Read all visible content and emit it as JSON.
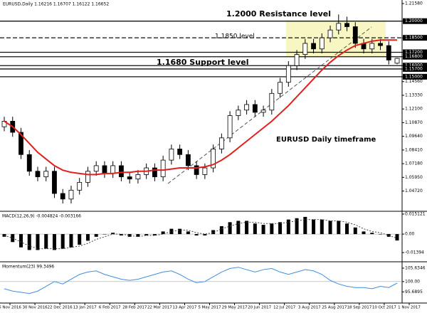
{
  "chart_data": {
    "type": "candlestick",
    "title": "EURUSD,Daily 1.16216 1.16707 1.16122 1.16652",
    "annotations": [
      "1.2000 Resistance level",
      "1.1850 level",
      "1.1680 Support level",
      "EURUSD Daily timeframe"
    ],
    "x_labels": [
      "6 Nov 2016",
      "30 Nov 2016",
      "22 Dec 2016",
      "13 Jan 2017",
      "6 Feb 2017",
      "28 Feb 2017",
      "22 Mar 2017",
      "13 Apr 2017",
      "5 May 2017",
      "29 May 2017",
      "20 Jun 2017",
      "12 Jul 2017",
      "3 Aug 2017",
      "25 Aug 2017",
      "18 Sep 2017",
      "10 Oct 2017",
      "1 Nov 2017"
    ],
    "open": [
      1.105,
      1.11,
      1.1,
      1.08,
      1.065,
      1.06,
      1.065,
      1.045,
      1.04,
      1.048,
      1.055,
      1.065,
      1.07,
      1.063,
      1.07,
      1.06,
      1.058,
      1.062,
      1.068,
      1.06,
      1.075,
      1.085,
      1.08,
      1.07,
      1.062,
      1.068,
      1.085,
      1.095,
      1.115,
      1.12,
      1.125,
      1.118,
      1.12,
      1.135,
      1.145,
      1.16,
      1.17,
      1.18,
      1.175,
      1.185,
      1.192,
      1.198,
      1.195,
      1.18,
      1.175,
      1.18,
      1.178,
      1.16216
    ],
    "high": [
      1.114,
      1.114,
      1.104,
      1.084,
      1.069,
      1.069,
      1.069,
      1.049,
      1.052,
      1.059,
      1.069,
      1.074,
      1.074,
      1.074,
      1.074,
      1.064,
      1.066,
      1.072,
      1.072,
      1.079,
      1.089,
      1.089,
      1.084,
      1.074,
      1.072,
      1.089,
      1.099,
      1.119,
      1.124,
      1.129,
      1.129,
      1.124,
      1.139,
      1.149,
      1.164,
      1.174,
      1.184,
      1.184,
      1.189,
      1.196,
      1.206,
      1.204,
      1.199,
      1.184,
      1.184,
      1.184,
      1.182,
      1.16707
    ],
    "low": [
      1.101,
      1.096,
      1.076,
      1.061,
      1.056,
      1.056,
      1.041,
      1.036,
      1.036,
      1.044,
      1.051,
      1.061,
      1.059,
      1.059,
      1.056,
      1.054,
      1.054,
      1.058,
      1.056,
      1.056,
      1.071,
      1.076,
      1.066,
      1.058,
      1.058,
      1.064,
      1.081,
      1.091,
      1.111,
      1.116,
      1.114,
      1.114,
      1.116,
      1.131,
      1.141,
      1.156,
      1.166,
      1.171,
      1.171,
      1.181,
      1.188,
      1.191,
      1.176,
      1.171,
      1.171,
      1.174,
      1.161,
      1.16122
    ],
    "close": [
      1.11,
      1.1,
      1.08,
      1.065,
      1.06,
      1.065,
      1.045,
      1.04,
      1.048,
      1.055,
      1.065,
      1.07,
      1.063,
      1.07,
      1.06,
      1.058,
      1.062,
      1.068,
      1.06,
      1.075,
      1.085,
      1.08,
      1.07,
      1.062,
      1.068,
      1.085,
      1.095,
      1.115,
      1.12,
      1.125,
      1.118,
      1.12,
      1.135,
      1.145,
      1.16,
      1.17,
      1.18,
      1.175,
      1.185,
      1.192,
      1.198,
      1.195,
      1.18,
      1.175,
      1.18,
      1.178,
      1.165,
      1.16652
    ],
    "moving_average": {
      "color": "#e0201c",
      "values": [
        1.11,
        1.105,
        1.098,
        1.09,
        1.082,
        1.076,
        1.07,
        1.066,
        1.064,
        1.063,
        1.062,
        1.062,
        1.063,
        1.063,
        1.064,
        1.064,
        1.065,
        1.065,
        1.066,
        1.066,
        1.067,
        1.068,
        1.068,
        1.068,
        1.069,
        1.071,
        1.075,
        1.08,
        1.086,
        1.092,
        1.098,
        1.104,
        1.11,
        1.117,
        1.124,
        1.132,
        1.14,
        1.148,
        1.156,
        1.163,
        1.169,
        1.174,
        1.178,
        1.18,
        1.182,
        1.183,
        1.183,
        1.183
      ]
    },
    "ylim": [
      1.029,
      1.219
    ],
    "yticks": [
      {
        "value": 1.2158,
        "label": "1.21580"
      },
      {
        "value": 1.1456,
        "label": "1.14560"
      },
      {
        "value": 1.1333,
        "label": "1.13330"
      },
      {
        "value": 1.121,
        "label": "1.12100"
      },
      {
        "value": 1.1087,
        "label": "1.10870"
      },
      {
        "value": 1.0964,
        "label": "1.09640"
      },
      {
        "value": 1.0841,
        "label": "1.08410"
      },
      {
        "value": 1.0718,
        "label": "1.07180"
      },
      {
        "value": 1.0595,
        "label": "1.05950"
      },
      {
        "value": 1.0472,
        "label": "1.04720"
      }
    ],
    "levels": [
      {
        "value": 1.2,
        "label": "1.20000"
      },
      {
        "value": 1.185,
        "label": "1.18500",
        "line": "dashed"
      },
      {
        "value": 1.172,
        "label": "1.17200"
      },
      {
        "value": 1.168,
        "label": "1.16800"
      },
      {
        "value": 1.16,
        "label": "1.16000"
      },
      {
        "value": 1.157,
        "label": "1.15700"
      },
      {
        "value": 1.15,
        "label": "1.15000"
      }
    ],
    "macd": {
      "title": "MACD(12,26,9) -0.004824 -0.003166",
      "histogram": [
        -0.002,
        -0.006,
        -0.01,
        -0.012,
        -0.012,
        -0.011,
        -0.012,
        -0.011,
        -0.01,
        -0.008,
        -0.005,
        -0.002,
        0.0,
        0.001,
        -0.001,
        -0.002,
        -0.002,
        -0.001,
        -0.001,
        0.002,
        0.004,
        0.004,
        0.002,
        -0.001,
        -0.001,
        0.003,
        0.006,
        0.009,
        0.01,
        0.01,
        0.008,
        0.007,
        0.008,
        0.009,
        0.011,
        0.012,
        0.013,
        0.011,
        0.011,
        0.01,
        0.01,
        0.008,
        0.005,
        0.002,
        0.001,
        0.0,
        -0.002,
        -0.004824
      ],
      "signal": [
        -0.001,
        -0.003,
        -0.006,
        -0.009,
        -0.011,
        -0.011,
        -0.011,
        -0.011,
        -0.01,
        -0.009,
        -0.007,
        -0.004,
        -0.002,
        0.0,
        0.0,
        -0.001,
        -0.002,
        -0.001,
        -0.001,
        0.0,
        0.002,
        0.003,
        0.003,
        0.001,
        0.0,
        0.001,
        0.004,
        0.006,
        0.008,
        0.009,
        0.009,
        0.008,
        0.008,
        0.008,
        0.009,
        0.01,
        0.011,
        0.011,
        0.011,
        0.01,
        0.01,
        0.009,
        0.007,
        0.004,
        0.002,
        0.001,
        -0.001,
        -0.003166
      ],
      "ylim": [
        -0.0209,
        0.0167
      ],
      "yticks": [
        0.015121,
        {
          "value": 0,
          "label": "0.00"
        },
        -0.01394
      ]
    },
    "momentum": {
      "title": "Momentum(23) 99.3496",
      "color": "#3d8fe0",
      "values": [
        97,
        96,
        95.5,
        95,
        96,
        98,
        100,
        99,
        101,
        103,
        104,
        104.5,
        103,
        102,
        101,
        100.5,
        101,
        102,
        103,
        104,
        104.5,
        103,
        101,
        99.5,
        100,
        102,
        104,
        105.5,
        106,
        105,
        104,
        105,
        105.5,
        104,
        103,
        104,
        105,
        104.5,
        103,
        100.5,
        99,
        98,
        97.5,
        97.5,
        97,
        98,
        97.5,
        99.3496
      ],
      "ylim": [
        91,
        108
      ],
      "yticks": [
        105.6346,
        {
          "value": 100,
          "label": "100.00"
        },
        95.6895
      ]
    }
  }
}
